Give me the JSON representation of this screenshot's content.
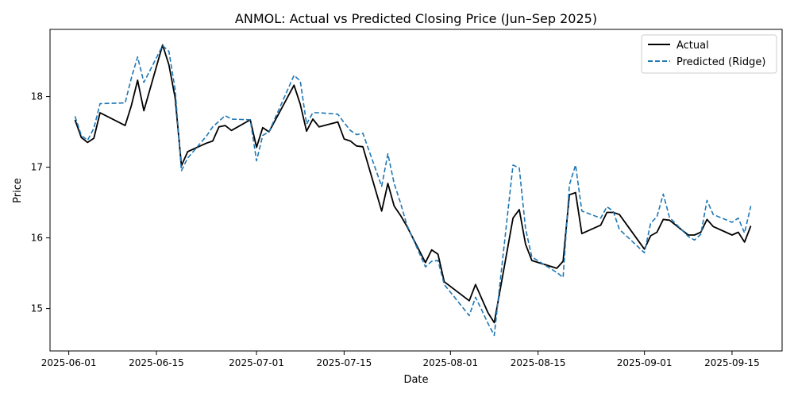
{
  "chart_data": {
    "type": "line",
    "title": "ANMOL: Actual vs Predicted Closing Price (Jun–Sep 2025)",
    "xlabel": "Date",
    "ylabel": "Price",
    "xlim": [
      "2025-05-29",
      "2025-09-23"
    ],
    "ylim": [
      14.4,
      18.95
    ],
    "xticks": [
      "2025-06-01",
      "2025-06-15",
      "2025-07-01",
      "2025-07-15",
      "2025-08-01",
      "2025-08-15",
      "2025-09-01",
      "2025-09-15"
    ],
    "yticks": [
      15,
      16,
      17,
      18
    ],
    "grid": false,
    "legend": "top-right",
    "x": [
      "2025-06-02",
      "2025-06-03",
      "2025-06-04",
      "2025-06-05",
      "2025-06-06",
      "2025-06-10",
      "2025-06-11",
      "2025-06-12",
      "2025-06-13",
      "2025-06-16",
      "2025-06-17",
      "2025-06-18",
      "2025-06-19",
      "2025-06-20",
      "2025-06-23",
      "2025-06-24",
      "2025-06-25",
      "2025-06-26",
      "2025-06-27",
      "2025-06-30",
      "2025-07-01",
      "2025-07-02",
      "2025-07-03",
      "2025-07-07",
      "2025-07-08",
      "2025-07-09",
      "2025-07-10",
      "2025-07-11",
      "2025-07-14",
      "2025-07-15",
      "2025-07-16",
      "2025-07-17",
      "2025-07-18",
      "2025-07-21",
      "2025-07-22",
      "2025-07-23",
      "2025-07-24",
      "2025-07-25",
      "2025-07-28",
      "2025-07-29",
      "2025-07-30",
      "2025-07-31",
      "2025-08-04",
      "2025-08-05",
      "2025-08-06",
      "2025-08-07",
      "2025-08-08",
      "2025-08-11",
      "2025-08-12",
      "2025-08-13",
      "2025-08-14",
      "2025-08-18",
      "2025-08-19",
      "2025-08-20",
      "2025-08-21",
      "2025-08-22",
      "2025-08-25",
      "2025-08-26",
      "2025-08-27",
      "2025-08-28",
      "2025-09-01",
      "2025-09-02",
      "2025-09-03",
      "2025-09-04",
      "2025-09-05",
      "2025-09-08",
      "2025-09-09",
      "2025-09-10",
      "2025-09-11",
      "2025-09-12",
      "2025-09-15",
      "2025-09-16",
      "2025-09-17",
      "2025-09-18"
    ],
    "series": [
      {
        "name": "Actual",
        "color": "#000000",
        "dash": "solid",
        "values": [
          17.67,
          17.42,
          17.35,
          17.41,
          17.77,
          17.59,
          17.87,
          18.23,
          17.8,
          18.73,
          18.45,
          17.98,
          17.02,
          17.22,
          17.34,
          17.37,
          17.57,
          17.59,
          17.52,
          17.67,
          17.28,
          17.56,
          17.5,
          18.16,
          17.89,
          17.51,
          17.68,
          17.57,
          17.64,
          17.4,
          17.37,
          17.3,
          17.29,
          16.38,
          16.77,
          16.45,
          16.32,
          16.17,
          15.65,
          15.83,
          15.77,
          15.38,
          15.11,
          15.34,
          15.14,
          14.94,
          14.8,
          16.28,
          16.4,
          15.91,
          15.68,
          15.57,
          15.67,
          16.61,
          16.64,
          16.06,
          16.18,
          16.36,
          16.36,
          16.33,
          15.84,
          16.03,
          16.08,
          16.26,
          16.25,
          16.04,
          16.04,
          16.08,
          16.26,
          16.16,
          16.04,
          16.08,
          15.94,
          16.17
        ]
      },
      {
        "name": "Predicted (Ridge)",
        "color": "#1f77b4",
        "dash": "dashed",
        "values": [
          17.72,
          17.45,
          17.38,
          17.55,
          17.9,
          17.91,
          18.26,
          18.56,
          18.2,
          18.72,
          18.64,
          18.1,
          16.95,
          17.13,
          17.44,
          17.57,
          17.65,
          17.73,
          17.68,
          17.67,
          17.09,
          17.45,
          17.5,
          18.3,
          18.22,
          17.61,
          17.77,
          17.77,
          17.75,
          17.63,
          17.52,
          17.46,
          17.48,
          16.73,
          17.19,
          16.77,
          16.5,
          16.19,
          15.59,
          15.67,
          15.68,
          15.34,
          14.9,
          15.16,
          14.98,
          14.79,
          14.62,
          17.03,
          16.99,
          16.13,
          15.73,
          15.51,
          15.44,
          16.75,
          17.03,
          16.38,
          16.28,
          16.44,
          16.38,
          16.12,
          15.79,
          16.21,
          16.3,
          16.62,
          16.29,
          16.02,
          15.97,
          16.05,
          16.53,
          16.33,
          16.22,
          16.28,
          16.07,
          16.45
        ]
      }
    ]
  }
}
